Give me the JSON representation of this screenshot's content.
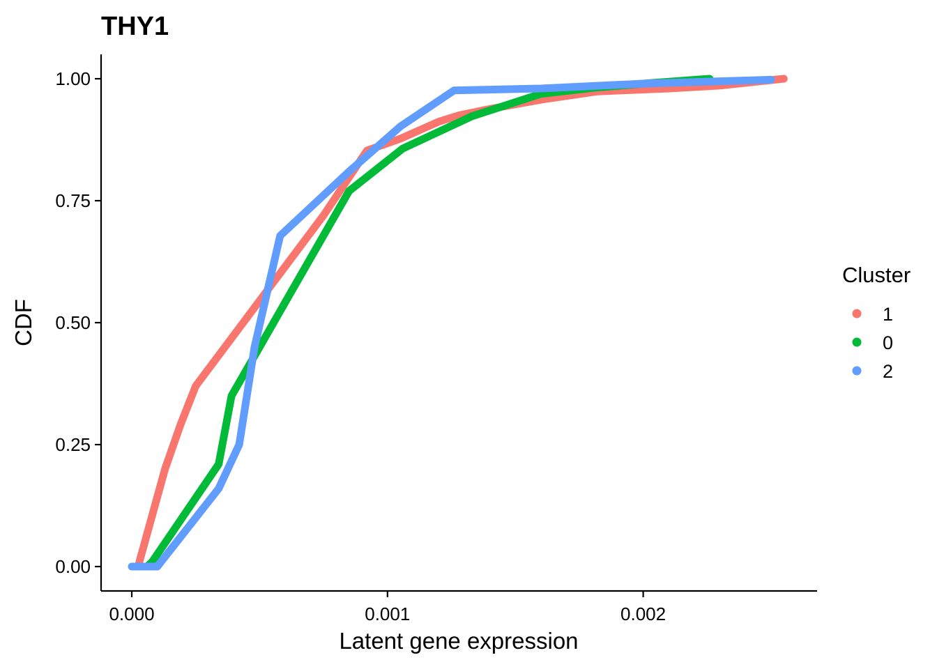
{
  "chart_data": {
    "type": "line",
    "title": "THY1",
    "xlabel": "Latent gene expression",
    "ylabel": "CDF",
    "xlim": [
      -0.00012,
      0.00268
    ],
    "ylim": [
      -0.05,
      1.05
    ],
    "x_ticks": [
      0.0,
      0.001,
      0.002
    ],
    "x_tick_labels": [
      "0.000",
      "0.001",
      "0.002"
    ],
    "y_ticks": [
      0.0,
      0.25,
      0.5,
      0.75,
      1.0
    ],
    "y_tick_labels": [
      "0.00",
      "0.25",
      "0.50",
      "0.75",
      "1.00"
    ],
    "grid": false,
    "legend": {
      "title": "Cluster",
      "position": "right"
    },
    "series": [
      {
        "name": "1",
        "color": "#F8766D",
        "points": [
          [
            2.5e-05,
            0.0
          ],
          [
            3.5e-05,
            0.02
          ],
          [
            0.00013,
            0.2
          ],
          [
            0.00019,
            0.29
          ],
          [
            0.00025,
            0.37
          ],
          [
            0.00035,
            0.44
          ],
          [
            0.00045,
            0.51
          ],
          [
            0.00055,
            0.58
          ],
          [
            0.00065,
            0.65
          ],
          [
            0.00075,
            0.72
          ],
          [
            0.00092,
            0.853
          ],
          [
            0.00105,
            0.877
          ],
          [
            0.0012,
            0.912
          ],
          [
            0.00128,
            0.925
          ],
          [
            0.0014,
            0.938
          ],
          [
            0.0016,
            0.957
          ],
          [
            0.00182,
            0.974
          ],
          [
            0.0021,
            0.98
          ],
          [
            0.0023,
            0.986
          ],
          [
            0.00255,
            1.0
          ]
        ]
      },
      {
        "name": "0",
        "color": "#00BA38",
        "points": [
          [
            6e-05,
            0.0
          ],
          [
            8e-05,
            0.01
          ],
          [
            0.00034,
            0.21
          ],
          [
            0.00039,
            0.35
          ],
          [
            0.0005,
            0.45
          ],
          [
            0.00062,
            0.56
          ],
          [
            0.00085,
            0.77
          ],
          [
            0.00106,
            0.857
          ],
          [
            0.00133,
            0.923
          ],
          [
            0.0016,
            0.969
          ],
          [
            0.0018,
            0.981
          ],
          [
            0.002,
            0.99
          ],
          [
            0.00226,
            1.0
          ]
        ]
      },
      {
        "name": "2",
        "color": "#619CFF",
        "points": [
          [
            0.0,
            0.0
          ],
          [
            0.0001,
            0.0
          ],
          [
            0.00034,
            0.16
          ],
          [
            0.00042,
            0.25
          ],
          [
            0.00048,
            0.45
          ],
          [
            0.00058,
            0.678
          ],
          [
            0.00085,
            0.81
          ],
          [
            0.00105,
            0.902
          ],
          [
            0.00126,
            0.976
          ],
          [
            0.0016,
            0.98
          ],
          [
            0.002,
            0.99
          ],
          [
            0.0025,
            0.998
          ]
        ]
      }
    ]
  }
}
